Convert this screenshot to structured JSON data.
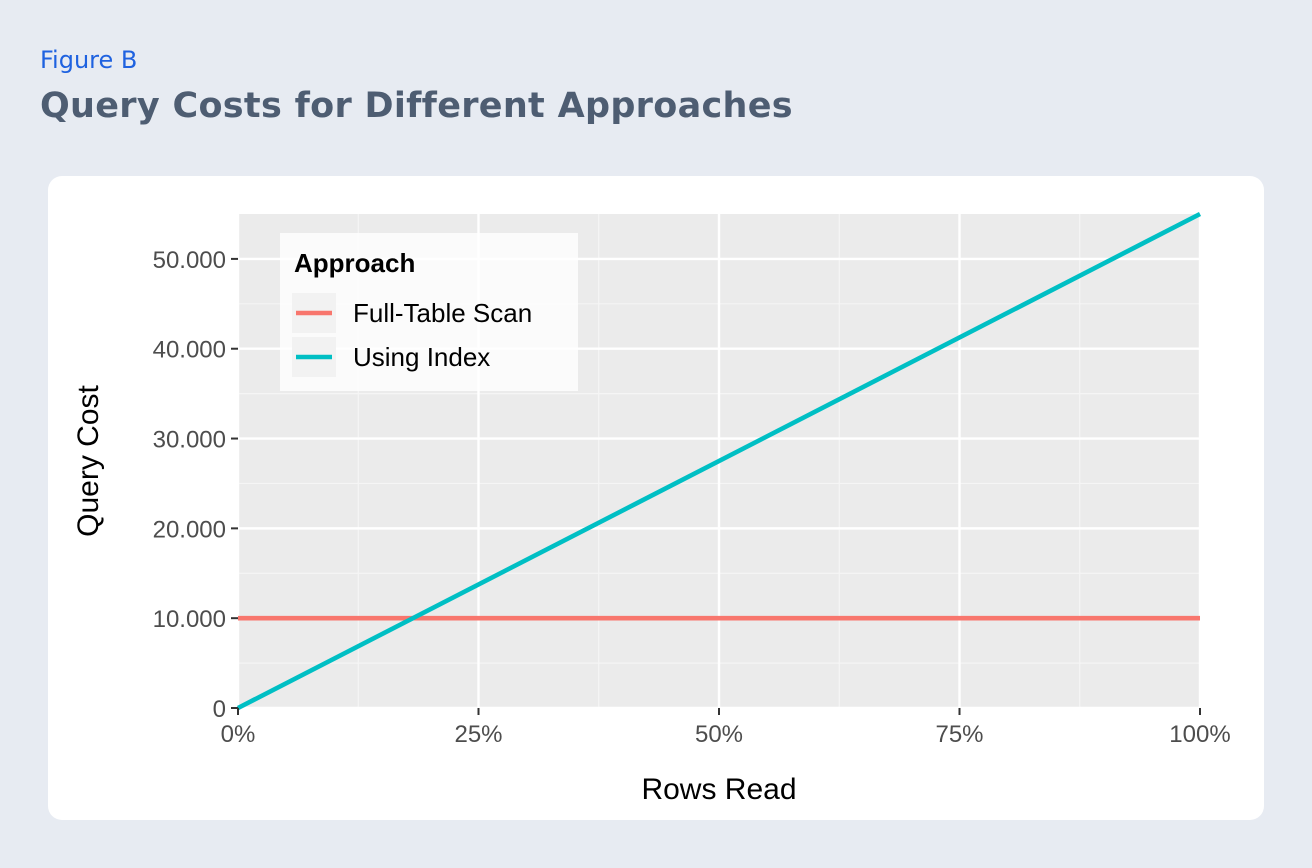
{
  "figure": {
    "label": "Figure B",
    "title": "Query Costs for Different Approaches"
  },
  "chart_data": {
    "type": "line",
    "xlabel": "Rows Read",
    "ylabel": "Query Cost",
    "xlim": [
      0,
      1
    ],
    "ylim": [
      0,
      55000
    ],
    "x_ticks": [
      0,
      0.25,
      0.5,
      0.75,
      1
    ],
    "x_tick_labels": [
      "0%",
      "25%",
      "50%",
      "75%",
      "100%"
    ],
    "y_ticks": [
      0,
      10000,
      20000,
      30000,
      40000,
      50000
    ],
    "y_tick_labels": [
      "0",
      "10.000",
      "20.000",
      "30.000",
      "40.000",
      "50.000"
    ],
    "grid": true,
    "legend": {
      "title": "Approach",
      "placement": "top-left"
    },
    "series": [
      {
        "name": "Full-Table Scan",
        "color": "#f8766d",
        "x": [
          0,
          1
        ],
        "y": [
          10000,
          10000
        ]
      },
      {
        "name": "Using Index",
        "color": "#00bfc4",
        "x": [
          0,
          1
        ],
        "y": [
          0,
          55000
        ]
      }
    ]
  }
}
